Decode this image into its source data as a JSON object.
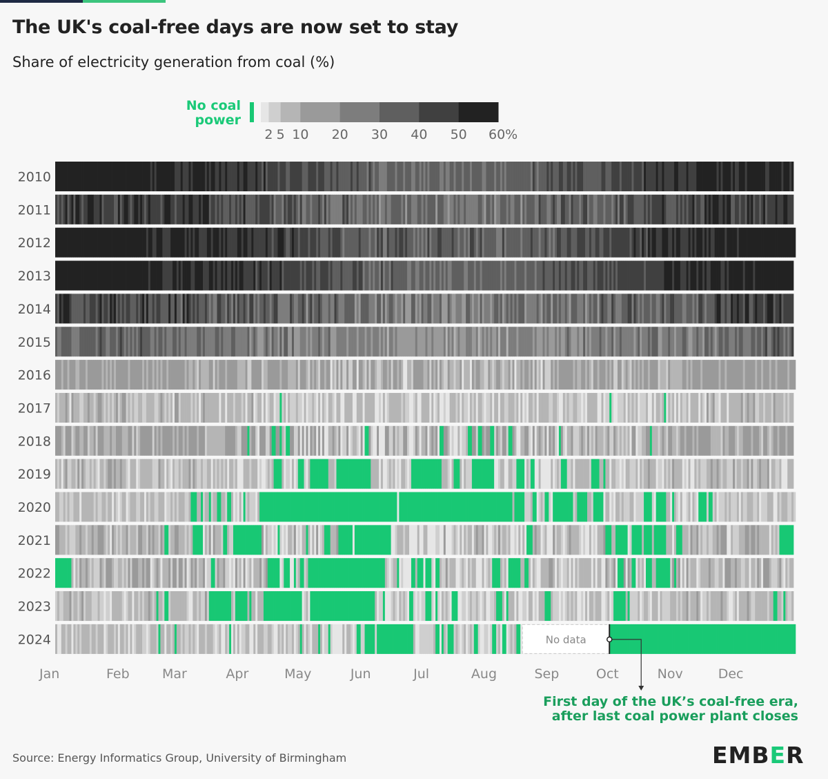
{
  "title": "The UK's coal-free days are now set to stay",
  "subtitle": "Share of electricity generation from coal (%)",
  "source": "Source: Energy Informatics Group, University of Birmingham",
  "logo": {
    "pre": "EMB",
    "accent": "E",
    "post": "R"
  },
  "colors": {
    "coal_free": "#18c874",
    "background": "#f7f7f7",
    "text": "#222222",
    "annotation": "#1a9e5c"
  },
  "chart_data": {
    "type": "heatmap",
    "title": "The UK's coal-free days are now set to stay",
    "value_label": "Share of electricity generation from coal (%)",
    "legend": {
      "no_coal_label": [
        "No coal",
        "power"
      ],
      "bins": [
        0,
        2,
        5,
        10,
        20,
        30,
        40,
        50,
        60
      ],
      "tick_labels": [
        "2",
        "5",
        "10",
        "20",
        "30",
        "40",
        "50",
        "60%"
      ],
      "ticks": [
        2,
        5,
        10,
        20,
        30,
        40,
        50,
        60
      ],
      "bin_colors": [
        "#e6e6e6",
        "#cfcfcf",
        "#b5b5b5",
        "#9a9a9a",
        "#7d7d7d",
        "#5f5f5f",
        "#404040",
        "#222222"
      ]
    },
    "months": [
      "Jan",
      "Feb",
      "Mar",
      "Apr",
      "May",
      "Jun",
      "Jul",
      "Aug",
      "Sep",
      "Oct",
      "Nov",
      "Dec"
    ],
    "month_start_days": [
      0,
      31,
      59,
      90,
      120,
      151,
      181,
      212,
      243,
      273,
      304,
      334
    ],
    "years": [
      {
        "year": "2010",
        "days": 365,
        "level": 44,
        "var": 7,
        "free": []
      },
      {
        "year": "2011",
        "days": 365,
        "level": 38,
        "var": 11,
        "free": []
      },
      {
        "year": "2012",
        "days": 366,
        "level": 46,
        "var": 9,
        "free": []
      },
      {
        "year": "2013",
        "days": 365,
        "level": 45,
        "var": 7,
        "free": []
      },
      {
        "year": "2014",
        "days": 365,
        "level": 34,
        "var": 12,
        "free": []
      },
      {
        "year": "2015",
        "days": 365,
        "level": 25,
        "var": 10,
        "free": []
      },
      {
        "year": "2016",
        "days": 366,
        "level": 10,
        "var": 7,
        "free": []
      },
      {
        "year": "2017",
        "days": 365,
        "level": 5,
        "var": 5,
        "free": [
          [
            111,
            111
          ],
          [
            274,
            274
          ],
          [
            301,
            301
          ]
        ]
      },
      {
        "year": "2018",
        "days": 365,
        "level": 9,
        "var": 8,
        "free": [
          [
            95,
            95
          ],
          [
            107,
            108
          ],
          [
            111,
            111
          ],
          [
            114,
            115
          ],
          [
            153,
            154
          ],
          [
            190,
            191
          ],
          [
            204,
            205
          ],
          [
            209,
            210
          ],
          [
            215,
            216
          ],
          [
            224,
            225
          ],
          [
            249,
            249
          ],
          [
            294,
            294
          ]
        ]
      },
      {
        "year": "2019",
        "days": 365,
        "level": 5,
        "var": 5,
        "free": [
          [
            108,
            111
          ],
          [
            120,
            122
          ],
          [
            126,
            134
          ],
          [
            139,
            155
          ],
          [
            176,
            190
          ],
          [
            197,
            199
          ],
          [
            206,
            216
          ],
          [
            228,
            231
          ],
          [
            235,
            236
          ],
          [
            250,
            252
          ],
          [
            265,
            268
          ],
          [
            271,
            271
          ]
        ]
      },
      {
        "year": "2020",
        "days": 366,
        "level": 4,
        "var": 4,
        "free": [
          [
            67,
            69
          ],
          [
            72,
            72
          ],
          [
            76,
            76
          ],
          [
            80,
            81
          ],
          [
            85,
            86
          ],
          [
            93,
            93
          ],
          [
            101,
            101
          ],
          [
            102,
            168
          ],
          [
            170,
            225
          ],
          [
            227,
            231
          ],
          [
            236,
            237
          ],
          [
            242,
            243
          ],
          [
            246,
            255
          ],
          [
            258,
            262
          ],
          [
            266,
            270
          ],
          [
            291,
            294
          ],
          [
            297,
            301
          ],
          [
            305,
            305
          ],
          [
            318,
            321
          ],
          [
            323,
            324
          ]
        ]
      },
      {
        "year": "2021",
        "days": 365,
        "level": 6,
        "var": 6,
        "free": [
          [
            54,
            55
          ],
          [
            68,
            72
          ],
          [
            83,
            84
          ],
          [
            88,
            101
          ],
          [
            110,
            110
          ],
          [
            124,
            124
          ],
          [
            133,
            135
          ],
          [
            140,
            146
          ],
          [
            148,
            165
          ],
          [
            233,
            235
          ],
          [
            272,
            274
          ],
          [
            277,
            282
          ],
          [
            285,
            289
          ],
          [
            291,
            294
          ],
          [
            296,
            301
          ],
          [
            307,
            309
          ],
          [
            358,
            364
          ]
        ]
      },
      {
        "year": "2022",
        "days": 365,
        "level": 6,
        "var": 6,
        "free": [
          [
            0,
            7
          ],
          [
            77,
            78
          ],
          [
            105,
            110
          ],
          [
            113,
            115
          ],
          [
            118,
            118
          ],
          [
            121,
            122
          ],
          [
            125,
            162
          ],
          [
            169,
            169
          ],
          [
            176,
            177
          ],
          [
            179,
            181
          ],
          [
            183,
            185
          ],
          [
            188,
            189
          ],
          [
            216,
            219
          ],
          [
            224,
            229
          ],
          [
            232,
            233
          ],
          [
            278,
            280
          ],
          [
            285,
            286
          ],
          [
            292,
            294
          ],
          [
            297,
            303
          ],
          [
            306,
            306
          ]
        ]
      },
      {
        "year": "2023",
        "days": 365,
        "level": 5,
        "var": 5,
        "free": [
          [
            50,
            50
          ],
          [
            54,
            55
          ],
          [
            76,
            78
          ],
          [
            79,
            86
          ],
          [
            89,
            94
          ],
          [
            96,
            96
          ],
          [
            103,
            121
          ],
          [
            126,
            155
          ],
          [
            156,
            157
          ],
          [
            162,
            162
          ],
          [
            175,
            176
          ],
          [
            183,
            185
          ],
          [
            188,
            188
          ],
          [
            196,
            198
          ],
          [
            218,
            220
          ],
          [
            223,
            223
          ],
          [
            242,
            244
          ],
          [
            276,
            281
          ],
          [
            283,
            283
          ],
          [
            355,
            356
          ],
          [
            360,
            360
          ]
        ]
      },
      {
        "year": "2024",
        "days": 366,
        "level": 4,
        "var": 4,
        "free": [
          [
            51,
            51
          ],
          [
            59,
            59
          ],
          [
            86,
            86
          ],
          [
            121,
            121
          ],
          [
            130,
            130
          ],
          [
            135,
            135
          ],
          [
            149,
            150
          ],
          [
            153,
            157
          ],
          [
            159,
            176
          ],
          [
            188,
            189
          ],
          [
            191,
            191
          ],
          [
            194,
            196
          ],
          [
            207,
            208
          ],
          [
            216,
            217
          ],
          [
            221,
            222
          ],
          [
            228,
            229
          ],
          [
            274,
            365
          ]
        ],
        "no_data": [
          231,
          273
        ],
        "no_data_label": "No data"
      }
    ],
    "annotation": {
      "text": [
        "First day of the UK’s coal-free era,",
        "after last coal power plant closes"
      ],
      "year": "2024",
      "day": 274
    }
  }
}
